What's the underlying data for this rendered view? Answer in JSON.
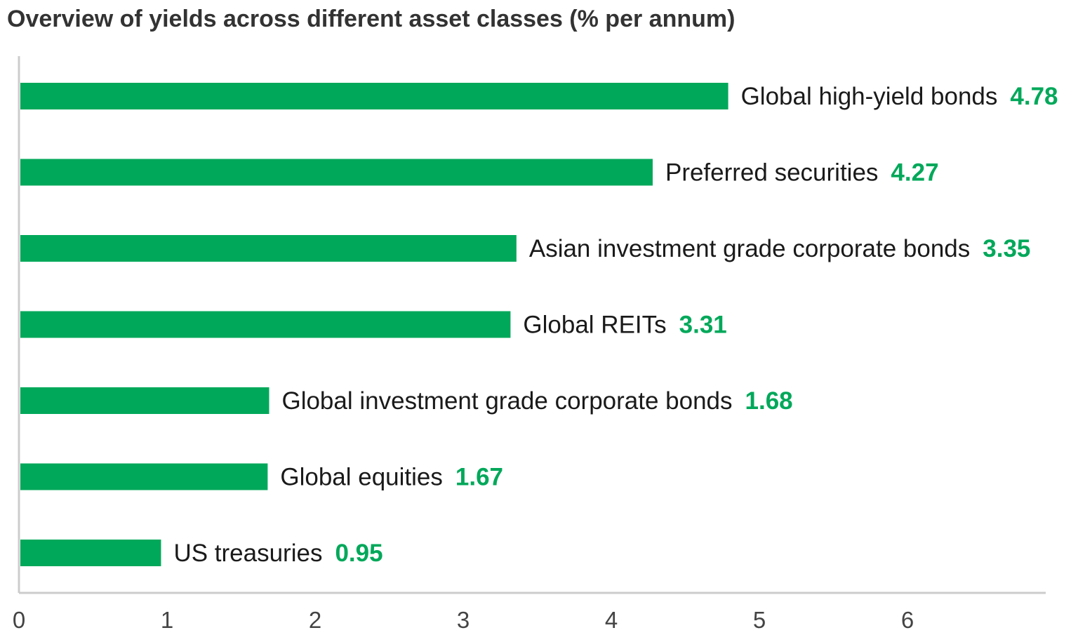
{
  "chart_data": {
    "type": "bar",
    "orientation": "horizontal",
    "title": "Overview of yields across different asset classes (% per annum)",
    "categories": [
      "Global high-yield bonds",
      "Preferred securities",
      "Asian investment grade corporate bonds",
      "Global REITs",
      "Global investment grade corporate bonds",
      "Global equities",
      "US treasuries"
    ],
    "values": [
      4.78,
      4.27,
      3.35,
      3.31,
      1.68,
      1.67,
      0.95
    ],
    "value_labels": [
      "4.78",
      "4.27",
      "3.35",
      "3.31",
      "1.68",
      "1.67",
      "0.95"
    ],
    "x_ticks": [
      "0",
      "1",
      "2",
      "3",
      "4",
      "5",
      "6"
    ],
    "xlim": [
      0,
      6.95
    ],
    "xlabel": "",
    "ylabel": "",
    "grid": false,
    "legend": "none",
    "colors": {
      "bar": "#00a85a",
      "value_label": "#00a85a",
      "axis": "#cccccc",
      "text": "#1a1a1a"
    }
  }
}
